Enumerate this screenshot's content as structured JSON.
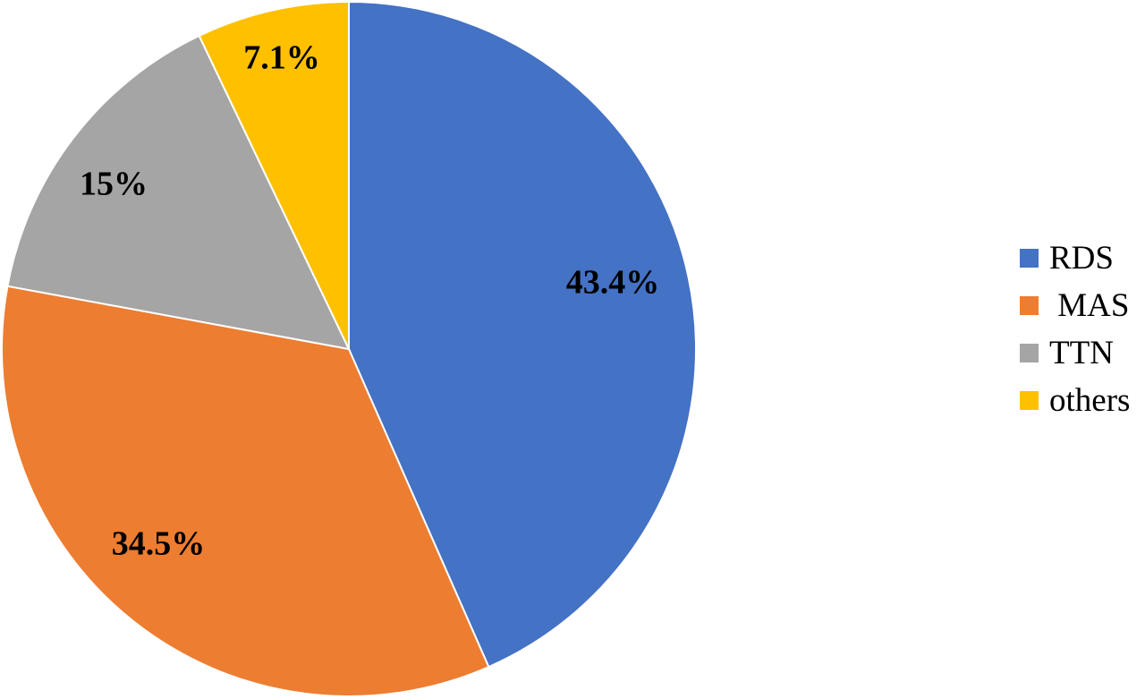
{
  "chart_data": {
    "type": "pie",
    "title": "",
    "categories": [
      "RDS",
      "MAS",
      "TTN",
      "others"
    ],
    "values": [
      43.4,
      34.5,
      15,
      7.1
    ],
    "value_labels": [
      "43.4%",
      "34.5%",
      "15%",
      "7.1%"
    ],
    "colors": [
      "#4472C4",
      "#ED7D31",
      "#A5A5A5",
      "#FFC000"
    ],
    "start_angle": "12 o'clock",
    "direction": "clockwise",
    "legend": {
      "placement": "right",
      "entries": [
        "RDS",
        " MAS",
        "TTN",
        "others"
      ]
    }
  }
}
